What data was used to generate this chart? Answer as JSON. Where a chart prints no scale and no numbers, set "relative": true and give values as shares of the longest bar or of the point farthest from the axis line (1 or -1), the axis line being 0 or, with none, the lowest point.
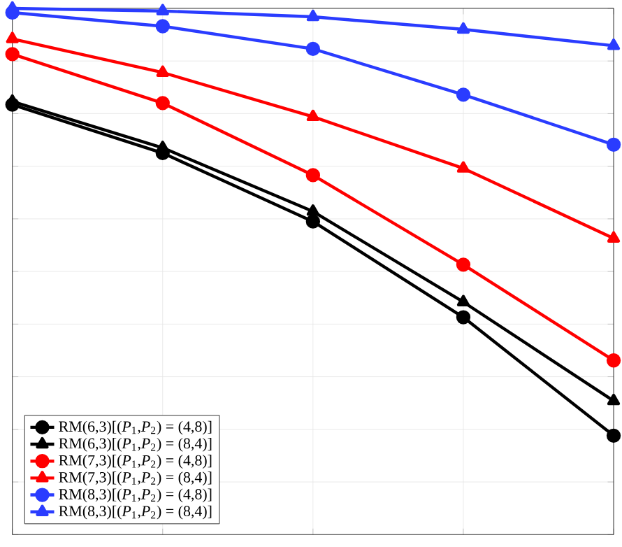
{
  "chart_data": {
    "type": "line",
    "relative": true,
    "categories": [
      null,
      null,
      null,
      null,
      null
    ],
    "grid": true,
    "legend": "bottom left",
    "line_style": "solid",
    "series": [
      {
        "name": "RM(6,3)[(*P*$_{1}$,*P*$_{2}$) = (4,8)]",
        "color": "#000000",
        "marker": "circle",
        "values": [
          0.817,
          0.725,
          0.595,
          0.413,
          0.188
        ]
      },
      {
        "name": "RM(6,3)[(*P*$_{1}$,*P*$_{2}$) = (8,4)]",
        "color": "#000000",
        "marker": "triangle",
        "values": [
          0.823,
          0.735,
          0.614,
          0.442,
          0.254
        ]
      },
      {
        "name": "RM(7,3)[(*P*$_{1}$,*P*$_{2}$) = (4,8)]",
        "color": "#ff0000",
        "marker": "circle",
        "values": [
          0.913,
          0.82,
          0.683,
          0.513,
          0.331
        ]
      },
      {
        "name": "RM(7,3)[(*P*$_{1}$,*P*$_{2}$) = (8,4)]",
        "color": "#ff0000",
        "marker": "triangle",
        "values": [
          0.942,
          0.878,
          0.794,
          0.696,
          0.563
        ]
      },
      {
        "name": "RM(8,3)[(*P*$_{1}$,*P*$_{2}$) = (4,8)]",
        "color": "#2a3cff",
        "marker": "circle",
        "values": [
          0.992,
          0.966,
          0.923,
          0.836,
          0.741
        ]
      },
      {
        "name": "RM(8,3)[(*P*$_{1}$,*P*$_{2}$) = (8,4)]",
        "color": "#2a3cff",
        "marker": "triangle",
        "values": [
          1,
          0.995,
          0.984,
          0.96,
          0.929
        ]
      }
    ]
  }
}
